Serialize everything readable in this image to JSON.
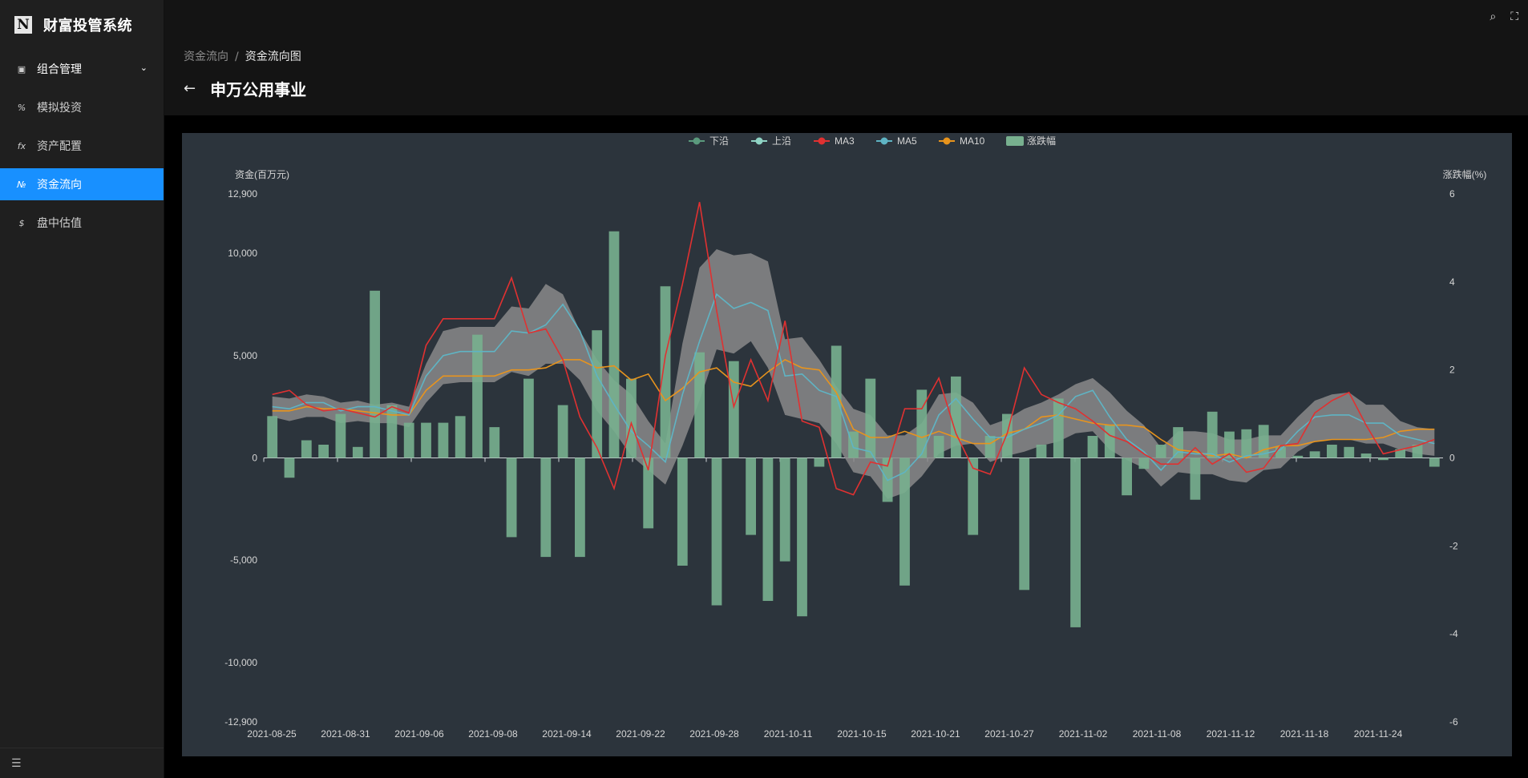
{
  "app": {
    "logo_letter": "N",
    "title": "财富投管系统"
  },
  "sidebar": {
    "items": [
      {
        "label": "组合管理",
        "icon": "image-icon",
        "glyph": "▣"
      },
      {
        "label": "模拟投资",
        "icon": "percent-icon",
        "glyph": "%"
      },
      {
        "label": "资产配置",
        "icon": "function-icon",
        "glyph": "fx"
      },
      {
        "label": "资金流向",
        "icon": "number-icon",
        "glyph": "№"
      },
      {
        "label": "盘中估值",
        "icon": "dollar-icon",
        "glyph": "$"
      }
    ],
    "collapse_glyph": "☰"
  },
  "header": {
    "breadcrumb": [
      "资金流向",
      "资金流向图"
    ],
    "separator": "/",
    "title": "申万公用事业",
    "back_glyph": "←",
    "search_glyph": "⌕",
    "fullscreen_glyph": "⛶"
  },
  "chart_data": {
    "type": "line",
    "legend": [
      "下沿",
      "上沿",
      "MA3",
      "MA5",
      "MA10",
      "涨跌幅"
    ],
    "legend_placement": "top-center",
    "ylabel": "资金(百万元)",
    "ylabel_right": "涨跌幅(%)",
    "ylim": [
      -12900,
      12900
    ],
    "ylim_right": [
      -6,
      6
    ],
    "yticks": [
      "12,900",
      "10,000",
      "5,000",
      "0",
      "-5,000",
      "-10,000",
      "-12,900"
    ],
    "yticks_right": [
      "6",
      "4",
      "2",
      "0",
      "-2",
      "-4",
      "-6"
    ],
    "xtick_labels": [
      "2021-08-25",
      "2021-08-31",
      "2021-09-06",
      "2021-09-08",
      "2021-09-14",
      "2021-09-22",
      "2021-09-28",
      "2021-10-11",
      "2021-10-15",
      "2021-10-21",
      "2021-10-27",
      "2021-11-02",
      "2021-11-08",
      "2021-11-12",
      "2021-11-18",
      "2021-11-24"
    ],
    "colors": {
      "lower": "#5b9a7d",
      "upper": "#8fd3c4",
      "ma3": "#e03131",
      "ma5": "#5fb4c4",
      "ma10": "#e8941d",
      "pct": "#78b08f",
      "band": "#8a8a8a",
      "panel": "#2c343c"
    },
    "series": [
      {
        "name": "MA3",
        "values": [
          3100,
          3300,
          2600,
          2300,
          2400,
          2200,
          2000,
          2500,
          2200,
          5500,
          6800,
          6800,
          6800,
          6800,
          8800,
          6100,
          6300,
          4800,
          2000,
          500,
          -1500,
          1700,
          -600,
          5000,
          8500,
          12500,
          7200,
          2500,
          4800,
          2800,
          6700,
          1800,
          1500,
          -1500,
          -1800,
          -200,
          -400,
          2400,
          2400,
          3900,
          1200,
          -500,
          -800,
          1200,
          4400,
          3100,
          2700,
          2400,
          1800,
          1100,
          800,
          200,
          -300,
          -300,
          500,
          -300,
          200,
          -700,
          -500,
          600,
          700,
          2200,
          2800,
          3200,
          1600,
          200,
          400,
          600,
          900
        ]
      },
      {
        "name": "MA5",
        "values": [
          2500,
          2400,
          2700,
          2700,
          2300,
          2500,
          2500,
          2300,
          2100,
          4000,
          5000,
          5200,
          5200,
          5200,
          6200,
          6100,
          6500,
          7500,
          6200,
          4000,
          2600,
          1300,
          600,
          -200,
          3100,
          5700,
          8000,
          7300,
          7600,
          7200,
          4000,
          4100,
          3300,
          3000,
          500,
          300,
          -1100,
          -700,
          200,
          2100,
          2900,
          1900,
          1000,
          1000,
          1400,
          1700,
          2100,
          3000,
          3300,
          2000,
          900,
          300,
          -600,
          300,
          200,
          200,
          -200,
          100,
          200,
          400,
          1300,
          2000,
          2100,
          2100,
          1700,
          1700,
          1100,
          900,
          700
        ]
      },
      {
        "name": "MA10",
        "values": [
          2300,
          2300,
          2500,
          2400,
          2400,
          2300,
          2200,
          2100,
          2100,
          3300,
          4000,
          4000,
          4000,
          4000,
          4300,
          4300,
          4400,
          4800,
          4800,
          4400,
          4500,
          3800,
          4100,
          2800,
          3400,
          4200,
          4400,
          3700,
          3500,
          4200,
          4800,
          4400,
          4300,
          3200,
          1400,
          1000,
          1000,
          1300,
          1000,
          1300,
          1000,
          700,
          700,
          1200,
          1400,
          2000,
          2100,
          1900,
          1700,
          1600,
          1600,
          1500,
          900,
          400,
          300,
          100,
          200,
          0,
          400,
          600,
          600,
          800,
          900,
          900,
          900,
          1000,
          1300,
          1400,
          1400
        ]
      },
      {
        "name": "上沿",
        "values": [
          3000,
          2900,
          3100,
          3000,
          2700,
          2800,
          2600,
          2700,
          2500,
          4600,
          6200,
          6400,
          6400,
          6400,
          7400,
          7300,
          8500,
          8000,
          6200,
          4800,
          3800,
          3100,
          1800,
          700,
          5600,
          9300,
          10200,
          9900,
          10000,
          9600,
          5800,
          5900,
          4800,
          3500,
          2400,
          2100,
          1100,
          1100,
          1700,
          3100,
          3200,
          2700,
          1600,
          1900,
          2400,
          2700,
          3100,
          3600,
          3900,
          3200,
          2300,
          1600,
          500,
          1300,
          1300,
          1200,
          900,
          900,
          1100,
          1100,
          2000,
          2800,
          3100,
          3200,
          2600,
          2600,
          1800,
          1500,
          1400
        ]
      },
      {
        "name": "下沿",
        "values": [
          2000,
          1800,
          2000,
          2000,
          1700,
          1800,
          1700,
          1700,
          1500,
          2700,
          3600,
          3700,
          3700,
          3700,
          4200,
          4000,
          4600,
          4600,
          3800,
          2300,
          1300,
          100,
          -600,
          -1300,
          600,
          2800,
          5300,
          5100,
          5700,
          4400,
          2100,
          1900,
          1700,
          700,
          -700,
          -900,
          -2000,
          -1700,
          -900,
          200,
          600,
          700,
          -200,
          100,
          300,
          600,
          800,
          1200,
          1300,
          400,
          -100,
          -500,
          -1400,
          -700,
          -800,
          -800,
          -1100,
          -1200,
          -600,
          -500,
          300,
          800,
          900,
          900,
          700,
          700,
          400,
          200,
          100
        ]
      },
      {
        "name": "涨跌幅",
        "values": [
          0.95,
          -0.45,
          0.4,
          0.3,
          1.0,
          0.25,
          3.8,
          1.2,
          0.8,
          0.8,
          0.8,
          0.95,
          2.8,
          0.7,
          -1.8,
          1.8,
          -2.25,
          1.2,
          -2.25,
          2.9,
          5.15,
          1.8,
          -1.6,
          3.9,
          -2.45,
          2.4,
          -3.35,
          2.2,
          -1.75,
          -3.25,
          -2.35,
          -3.6,
          -0.2,
          2.55,
          0.6,
          1.8,
          -1.0,
          -2.9,
          1.55,
          0.5,
          1.85,
          -1.75,
          0.5,
          1.0,
          -3.0,
          0.3,
          1.35,
          -3.85,
          0.5,
          0.75,
          -0.85,
          -0.25,
          0.3,
          0.7,
          -0.95,
          1.05,
          0.6,
          0.65,
          0.75,
          0.25,
          0.05,
          0.15,
          0.3,
          0.25,
          0.1,
          -0.05,
          0.2,
          0.3,
          -0.2
        ]
      }
    ]
  }
}
